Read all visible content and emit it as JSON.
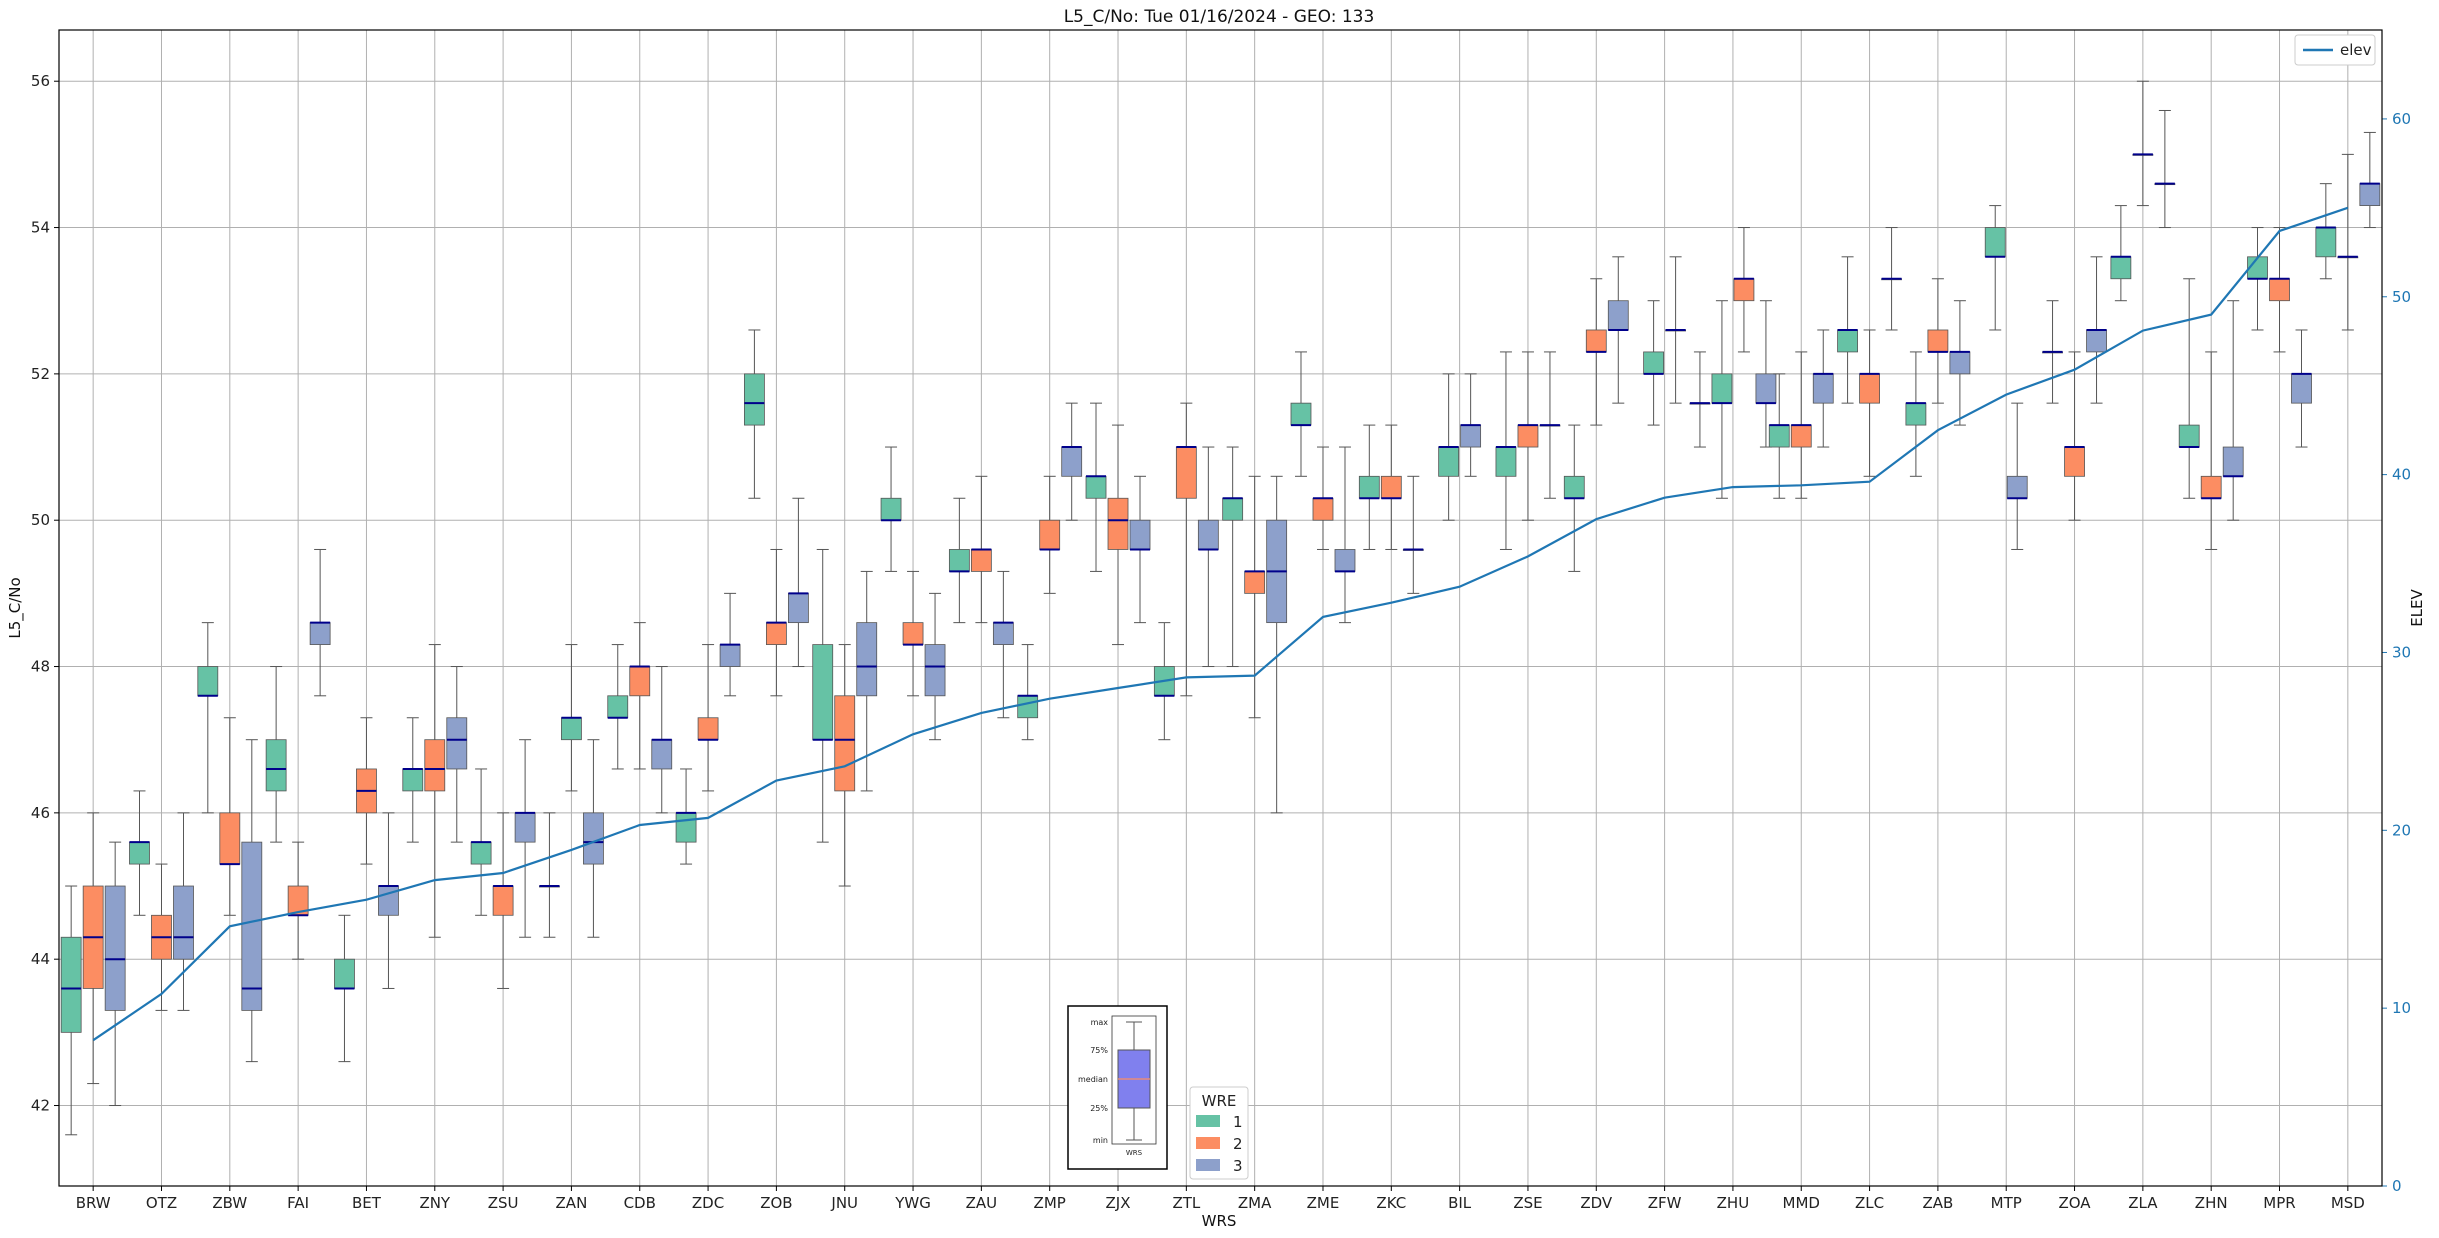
{
  "chart_data": {
    "type": "box",
    "title": "L5_C/No: Tue 01/16/2024 - GEO: 133",
    "xlabel": "WRS",
    "ylabel": "L5_C/No",
    "y2label": "ELEV",
    "ylim": [
      40.9,
      56.7
    ],
    "y2lim": [
      0,
      65
    ],
    "yticks": [
      42,
      44,
      46,
      48,
      50,
      52,
      54,
      56
    ],
    "y2ticks": [
      0,
      10,
      20,
      30,
      40,
      50,
      60
    ],
    "grid": true,
    "categories": [
      "BRW",
      "OTZ",
      "ZBW",
      "FAI",
      "BET",
      "ZNY",
      "ZSU",
      "ZAN",
      "CDB",
      "ZDC",
      "ZOB",
      "JNU",
      "YWG",
      "ZAU",
      "ZMP",
      "ZJX",
      "ZTL",
      "ZMA",
      "ZME",
      "ZKC",
      "BIL",
      "ZSE",
      "ZDV",
      "ZFW",
      "ZHU",
      "MMD",
      "ZLC",
      "ZAB",
      "MTP",
      "ZOA",
      "ZLA",
      "ZHN",
      "MPR",
      "MSD"
    ],
    "wre_legend": {
      "title": "WRE",
      "entries": [
        "1",
        "2",
        "3"
      ]
    },
    "colors": {
      "wre1": "#66c2a5",
      "wre2": "#fc8d62",
      "wre3": "#8da0cb",
      "median": "#00008b",
      "elev": "#1f77b4",
      "whisker": "#555555"
    },
    "boxes": [
      [
        {
          "wre": 1,
          "min": 41.6,
          "q1": 43.0,
          "median": 43.6,
          "q3": 44.3,
          "max": 45.0
        },
        {
          "wre": 2,
          "min": 42.3,
          "q1": 43.6,
          "median": 44.3,
          "q3": 45.0,
          "max": 46.0
        },
        {
          "wre": 3,
          "min": 42.0,
          "q1": 43.3,
          "median": 44.0,
          "q3": 45.0,
          "max": 45.6
        }
      ],
      [
        {
          "wre": 1,
          "min": 44.6,
          "q1": 45.3,
          "median": 45.6,
          "q3": 45.6,
          "max": 46.3
        },
        {
          "wre": 2,
          "min": 43.3,
          "q1": 44.0,
          "median": 44.3,
          "q3": 44.6,
          "max": 45.3
        },
        {
          "wre": 3,
          "min": 43.3,
          "q1": 44.0,
          "median": 44.3,
          "q3": 45.0,
          "max": 46.0
        }
      ],
      [
        {
          "wre": 1,
          "min": 46.0,
          "q1": 47.6,
          "median": 47.6,
          "q3": 48.0,
          "max": 48.6
        },
        {
          "wre": 2,
          "min": 44.6,
          "q1": 45.3,
          "median": 45.3,
          "q3": 46.0,
          "max": 47.3
        },
        {
          "wre": 3,
          "min": 42.6,
          "q1": 43.3,
          "median": 43.6,
          "q3": 45.6,
          "max": 47.0
        }
      ],
      [
        {
          "wre": 1,
          "min": 45.6,
          "q1": 46.3,
          "median": 46.6,
          "q3": 47.0,
          "max": 48.0
        },
        {
          "wre": 2,
          "min": 44.0,
          "q1": 44.6,
          "median": 44.6,
          "q3": 45.0,
          "max": 45.6
        },
        {
          "wre": 3,
          "min": 47.6,
          "q1": 48.3,
          "median": 48.6,
          "q3": 48.6,
          "max": 49.6
        }
      ],
      [
        {
          "wre": 1,
          "min": 42.6,
          "q1": 43.6,
          "median": 43.6,
          "q3": 44.0,
          "max": 44.6
        },
        {
          "wre": 2,
          "min": 45.3,
          "q1": 46.0,
          "median": 46.3,
          "q3": 46.6,
          "max": 47.3
        },
        {
          "wre": 3,
          "min": 43.6,
          "q1": 44.6,
          "median": 45.0,
          "q3": 45.0,
          "max": 46.0
        }
      ],
      [
        {
          "wre": 1,
          "min": 45.6,
          "q1": 46.3,
          "median": 46.6,
          "q3": 46.6,
          "max": 47.3
        },
        {
          "wre": 2,
          "min": 44.3,
          "q1": 46.3,
          "median": 46.6,
          "q3": 47.0,
          "max": 48.3
        },
        {
          "wre": 3,
          "min": 45.6,
          "q1": 46.6,
          "median": 47.0,
          "q3": 47.3,
          "max": 48.0
        }
      ],
      [
        {
          "wre": 1,
          "min": 44.6,
          "q1": 45.3,
          "median": 45.6,
          "q3": 45.6,
          "max": 46.6
        },
        {
          "wre": 2,
          "min": 43.6,
          "q1": 44.6,
          "median": 45.0,
          "q3": 45.0,
          "max": 46.0
        },
        {
          "wre": 3,
          "min": 44.3,
          "q1": 45.6,
          "median": 46.0,
          "q3": 46.0,
          "max": 47.0
        }
      ],
      [
        {
          "wre": 1,
          "min": 44.3,
          "q1": 45.0,
          "median": 45.0,
          "q3": 45.0,
          "max": 46.0
        },
        {
          "wre": 1,
          "min": 46.3,
          "q1": 47.0,
          "median": 47.3,
          "q3": 47.3,
          "max": 48.3
        },
        {
          "wre": 3,
          "min": 44.3,
          "q1": 45.3,
          "median": 45.6,
          "q3": 46.0,
          "max": 47.0
        }
      ],
      [
        {
          "wre": 1,
          "min": 46.6,
          "q1": 47.3,
          "median": 47.3,
          "q3": 47.6,
          "max": 48.3
        },
        {
          "wre": 2,
          "min": 46.6,
          "q1": 47.6,
          "median": 48.0,
          "q3": 48.0,
          "max": 48.6
        },
        {
          "wre": 3,
          "min": 46.0,
          "q1": 46.6,
          "median": 47.0,
          "q3": 47.0,
          "max": 48.0
        }
      ],
      [
        {
          "wre": 1,
          "min": 45.3,
          "q1": 45.6,
          "median": 46.0,
          "q3": 46.0,
          "max": 46.6
        },
        {
          "wre": 2,
          "min": 46.3,
          "q1": 47.0,
          "median": 47.0,
          "q3": 47.3,
          "max": 48.3
        },
        {
          "wre": 3,
          "min": 47.6,
          "q1": 48.0,
          "median": 48.3,
          "q3": 48.3,
          "max": 49.0
        }
      ],
      [
        {
          "wre": 1,
          "min": 50.3,
          "q1": 51.3,
          "median": 51.6,
          "q3": 52.0,
          "max": 52.6
        },
        {
          "wre": 2,
          "min": 47.6,
          "q1": 48.3,
          "median": 48.6,
          "q3": 48.6,
          "max": 49.6
        },
        {
          "wre": 3,
          "min": 48.0,
          "q1": 48.6,
          "median": 49.0,
          "q3": 49.0,
          "max": 50.3
        }
      ],
      [
        {
          "wre": 1,
          "min": 45.6,
          "q1": 47.0,
          "median": 47.0,
          "q3": 48.3,
          "max": 49.6
        },
        {
          "wre": 2,
          "min": 45.0,
          "q1": 46.3,
          "median": 47.0,
          "q3": 47.6,
          "max": 48.3
        },
        {
          "wre": 3,
          "min": 46.3,
          "q1": 47.6,
          "median": 48.0,
          "q3": 48.6,
          "max": 49.3
        }
      ],
      [
        {
          "wre": 1,
          "min": 49.3,
          "q1": 50.0,
          "median": 50.0,
          "q3": 50.3,
          "max": 51.0
        },
        {
          "wre": 2,
          "min": 47.6,
          "q1": 48.3,
          "median": 48.3,
          "q3": 48.6,
          "max": 49.3
        },
        {
          "wre": 3,
          "min": 47.0,
          "q1": 47.6,
          "median": 48.0,
          "q3": 48.3,
          "max": 49.0
        }
      ],
      [
        {
          "wre": 1,
          "min": 48.6,
          "q1": 49.3,
          "median": 49.3,
          "q3": 49.6,
          "max": 50.3
        },
        {
          "wre": 2,
          "min": 48.6,
          "q1": 49.3,
          "median": 49.6,
          "q3": 49.6,
          "max": 50.6
        },
        {
          "wre": 3,
          "min": 47.3,
          "q1": 48.3,
          "median": 48.6,
          "q3": 48.6,
          "max": 49.3
        }
      ],
      [
        {
          "wre": 1,
          "min": 47.0,
          "q1": 47.3,
          "median": 47.6,
          "q3": 47.6,
          "max": 48.3
        },
        {
          "wre": 2,
          "min": 49.0,
          "q1": 49.6,
          "median": 49.6,
          "q3": 50.0,
          "max": 50.6
        },
        {
          "wre": 3,
          "min": 50.0,
          "q1": 50.6,
          "median": 51.0,
          "q3": 51.0,
          "max": 51.6
        }
      ],
      [
        {
          "wre": 1,
          "min": 49.3,
          "q1": 50.3,
          "median": 50.6,
          "q3": 50.6,
          "max": 51.6
        },
        {
          "wre": 2,
          "min": 48.3,
          "q1": 49.6,
          "median": 50.0,
          "q3": 50.3,
          "max": 51.3
        },
        {
          "wre": 3,
          "min": 48.6,
          "q1": 49.6,
          "median": 49.6,
          "q3": 50.0,
          "max": 50.6
        }
      ],
      [
        {
          "wre": 1,
          "min": 47.0,
          "q1": 47.6,
          "median": 47.6,
          "q3": 48.0,
          "max": 48.6
        },
        {
          "wre": 2,
          "min": 47.6,
          "q1": 50.3,
          "median": 51.0,
          "q3": 51.0,
          "max": 51.6
        },
        {
          "wre": 3,
          "min": 48.0,
          "q1": 49.6,
          "median": 49.6,
          "q3": 50.0,
          "max": 51.0
        }
      ],
      [
        {
          "wre": 1,
          "min": 48.0,
          "q1": 50.0,
          "median": 50.3,
          "q3": 50.3,
          "max": 51.0
        },
        {
          "wre": 2,
          "min": 47.3,
          "q1": 49.0,
          "median": 49.3,
          "q3": 49.3,
          "max": 50.6
        },
        {
          "wre": 3,
          "min": 46.0,
          "q1": 48.6,
          "median": 49.3,
          "q3": 50.0,
          "max": 50.6
        }
      ],
      [
        {
          "wre": 1,
          "min": 50.6,
          "q1": 51.3,
          "median": 51.3,
          "q3": 51.6,
          "max": 52.3
        },
        {
          "wre": 2,
          "min": 49.6,
          "q1": 50.0,
          "median": 50.3,
          "q3": 50.3,
          "max": 51.0
        },
        {
          "wre": 3,
          "min": 48.6,
          "q1": 49.3,
          "median": 49.3,
          "q3": 49.6,
          "max": 51.0
        }
      ],
      [
        {
          "wre": 1,
          "min": 49.6,
          "q1": 50.3,
          "median": 50.3,
          "q3": 50.6,
          "max": 51.3
        },
        {
          "wre": 2,
          "min": 49.6,
          "q1": 50.3,
          "median": 50.3,
          "q3": 50.6,
          "max": 51.3
        },
        {
          "wre": 3,
          "min": 49.0,
          "q1": 49.6,
          "median": 49.6,
          "q3": 49.6,
          "max": 50.6
        }
      ],
      [
        {
          "wre": 1,
          "min": 50.0,
          "q1": 50.6,
          "median": 51.0,
          "q3": 51.0,
          "max": 52.0
        },
        {
          "wre": 3,
          "min": 50.6,
          "q1": 51.0,
          "median": 51.3,
          "q3": 51.3,
          "max": 52.0
        }
      ],
      [
        {
          "wre": 1,
          "min": 49.6,
          "q1": 50.6,
          "median": 51.0,
          "q3": 51.0,
          "max": 52.3
        },
        {
          "wre": 2,
          "min": 50.0,
          "q1": 51.0,
          "median": 51.3,
          "q3": 51.3,
          "max": 52.3
        },
        {
          "wre": 3,
          "min": 50.3,
          "q1": 51.3,
          "median": 51.3,
          "q3": 51.3,
          "max": 52.3
        }
      ],
      [
        {
          "wre": 1,
          "min": 49.3,
          "q1": 50.3,
          "median": 50.3,
          "q3": 50.6,
          "max": 51.3
        },
        {
          "wre": 2,
          "min": 51.3,
          "q1": 52.3,
          "median": 52.3,
          "q3": 52.6,
          "max": 53.3
        },
        {
          "wre": 3,
          "min": 51.6,
          "q1": 52.6,
          "median": 52.6,
          "q3": 53.0,
          "max": 53.6
        }
      ],
      [
        {
          "wre": 1,
          "min": 51.3,
          "q1": 52.0,
          "median": 52.0,
          "q3": 52.3,
          "max": 53.0
        },
        {
          "wre": 3,
          "min": 51.6,
          "q1": 52.6,
          "median": 52.6,
          "q3": 52.6,
          "max": 53.6
        }
      ],
      [
        {
          "wre": 1,
          "min": 51.0,
          "q1": 51.6,
          "median": 51.6,
          "q3": 51.6,
          "max": 52.3
        },
        {
          "wre": 1,
          "min": 50.3,
          "q1": 51.6,
          "median": 51.6,
          "q3": 52.0,
          "max": 53.0
        },
        {
          "wre": 2,
          "min": 52.3,
          "q1": 53.0,
          "median": 53.3,
          "q3": 53.3,
          "max": 54.0
        },
        {
          "wre": 3,
          "min": 51.0,
          "q1": 51.6,
          "median": 51.6,
          "q3": 52.0,
          "max": 53.0
        }
      ],
      [
        {
          "wre": 1,
          "min": 50.3,
          "q1": 51.0,
          "median": 51.3,
          "q3": 51.3,
          "max": 52.0
        },
        {
          "wre": 2,
          "min": 50.3,
          "q1": 51.0,
          "median": 51.3,
          "q3": 51.3,
          "max": 52.3
        },
        {
          "wre": 3,
          "min": 51.0,
          "q1": 51.6,
          "median": 52.0,
          "q3": 52.0,
          "max": 52.6
        }
      ],
      [
        {
          "wre": 1,
          "min": 51.6,
          "q1": 52.3,
          "median": 52.6,
          "q3": 52.6,
          "max": 53.6
        },
        {
          "wre": 2,
          "min": 50.6,
          "q1": 51.6,
          "median": 52.0,
          "q3": 52.0,
          "max": 52.6
        },
        {
          "wre": 3,
          "min": 52.6,
          "q1": 53.3,
          "median": 53.3,
          "q3": 53.3,
          "max": 54.0
        }
      ],
      [
        {
          "wre": 1,
          "min": 50.6,
          "q1": 51.3,
          "median": 51.6,
          "q3": 51.6,
          "max": 52.3
        },
        {
          "wre": 2,
          "min": 51.6,
          "q1": 52.3,
          "median": 52.3,
          "q3": 52.6,
          "max": 53.3
        },
        {
          "wre": 3,
          "min": 51.3,
          "q1": 52.0,
          "median": 52.3,
          "q3": 52.3,
          "max": 53.0
        }
      ],
      [
        {
          "wre": 1,
          "min": 52.6,
          "q1": 53.6,
          "median": 53.6,
          "q3": 54.0,
          "max": 54.3
        },
        {
          "wre": 3,
          "min": 49.6,
          "q1": 50.3,
          "median": 50.3,
          "q3": 50.6,
          "max": 51.6
        }
      ],
      [
        {
          "wre": 3,
          "min": 51.6,
          "q1": 52.3,
          "median": 52.3,
          "q3": 52.3,
          "max": 53.0
        },
        {
          "wre": 2,
          "min": 50.0,
          "q1": 50.6,
          "median": 51.0,
          "q3": 51.0,
          "max": 52.3
        },
        {
          "wre": 3,
          "min": 51.6,
          "q1": 52.3,
          "median": 52.6,
          "q3": 52.6,
          "max": 53.6
        }
      ],
      [
        {
          "wre": 1,
          "min": 53.0,
          "q1": 53.3,
          "median": 53.6,
          "q3": 53.6,
          "max": 54.3
        },
        {
          "wre": 3,
          "min": 54.3,
          "q1": 55.0,
          "median": 55.0,
          "q3": 55.0,
          "max": 56.0
        },
        {
          "wre": 3,
          "min": 54.0,
          "q1": 54.6,
          "median": 54.6,
          "q3": 54.6,
          "max": 55.6
        }
      ],
      [
        {
          "wre": 1,
          "min": 50.3,
          "q1": 51.0,
          "median": 51.0,
          "q3": 51.3,
          "max": 53.3
        },
        {
          "wre": 2,
          "min": 49.6,
          "q1": 50.3,
          "median": 50.3,
          "q3": 50.6,
          "max": 52.3
        },
        {
          "wre": 3,
          "min": 50.0,
          "q1": 50.6,
          "median": 50.6,
          "q3": 51.0,
          "max": 53.0
        }
      ],
      [
        {
          "wre": 1,
          "min": 52.6,
          "q1": 53.3,
          "median": 53.3,
          "q3": 53.6,
          "max": 54.0
        },
        {
          "wre": 2,
          "min": 52.3,
          "q1": 53.0,
          "median": 53.3,
          "q3": 53.3,
          "max": 54.0
        },
        {
          "wre": 3,
          "min": 51.0,
          "q1": 51.6,
          "median": 52.0,
          "q3": 52.0,
          "max": 52.6
        }
      ],
      [
        {
          "wre": 1,
          "min": 53.3,
          "q1": 53.6,
          "median": 54.0,
          "q3": 54.0,
          "max": 54.6
        },
        {
          "wre": 3,
          "min": 52.6,
          "q1": 53.6,
          "median": 53.6,
          "q3": 53.6,
          "max": 55.0
        },
        {
          "wre": 3,
          "min": 54.0,
          "q1": 54.3,
          "median": 54.6,
          "q3": 54.6,
          "max": 55.3
        }
      ]
    ],
    "series": [
      {
        "name": "elev",
        "axis": "right",
        "values": [
          8.2,
          10.8,
          14.6,
          15.4,
          16.1,
          17.2,
          17.6,
          18.9,
          20.3,
          20.7,
          22.8,
          23.6,
          25.4,
          26.6,
          27.4,
          28.0,
          28.6,
          28.7,
          32.0,
          32.8,
          33.7,
          35.4,
          37.5,
          38.7,
          39.3,
          39.4,
          39.6,
          42.5,
          44.5,
          45.9,
          48.1,
          49.0,
          53.7,
          55.0
        ]
      }
    ],
    "series_legend": {
      "entries": [
        "elev"
      ],
      "placement": "upper-right"
    },
    "inset_key": {
      "labels": [
        "max",
        "75%",
        "median",
        "25%",
        "min"
      ],
      "xlabel": "WRS",
      "placement": "bottom-center"
    }
  }
}
